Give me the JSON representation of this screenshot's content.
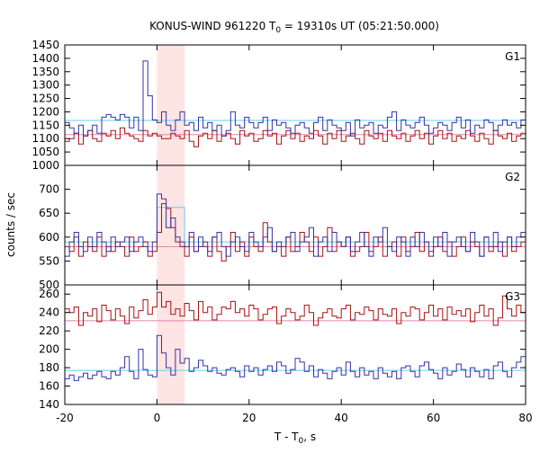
{
  "chart_data": {
    "type": "line",
    "title_prefix": "KONUS-WIND 961220 T",
    "title_sub": "0",
    "title_suffix": " = 19310s UT (05:21:50.000)",
    "xlabel_prefix": "T - T",
    "xlabel_sub": "0",
    "xlabel_suffix": ", s",
    "ylabel": "counts / sec",
    "xlim": [
      -20,
      80
    ],
    "xticks": [
      -20,
      0,
      20,
      40,
      60,
      80
    ],
    "highlight": {
      "x0": 0,
      "x1": 6,
      "color": "#ffe4e4"
    },
    "grid": false,
    "colors": {
      "blue": "#3333aa",
      "red": "#aa1111",
      "cyan": "#66ccee",
      "pink": "#dd88aa"
    },
    "panels": [
      {
        "label": "G1",
        "ylim": [
          1000,
          1450
        ],
        "yticks": [
          1000,
          1050,
          1100,
          1150,
          1200,
          1250,
          1300,
          1350,
          1400,
          1450
        ],
        "bin_start": -20,
        "bin_width": 1,
        "blue_values": [
          1160,
          1140,
          1120,
          1150,
          1110,
          1130,
          1150,
          1120,
          1180,
          1190,
          1180,
          1170,
          1190,
          1180,
          1140,
          1180,
          1130,
          1390,
          1260,
          1170,
          1160,
          1200,
          1150,
          1130,
          1170,
          1200,
          1150,
          1160,
          1130,
          1180,
          1140,
          1160,
          1130,
          1150,
          1110,
          1130,
          1200,
          1150,
          1140,
          1180,
          1160,
          1140,
          1160,
          1180,
          1130,
          1170,
          1150,
          1160,
          1140,
          1120,
          1150,
          1160,
          1140,
          1120,
          1160,
          1180,
          1130,
          1170,
          1150,
          1140,
          1130,
          1160,
          1110,
          1170,
          1140,
          1150,
          1160,
          1120,
          1150,
          1140,
          1180,
          1200,
          1130,
          1170,
          1150,
          1140,
          1160,
          1180,
          1150,
          1120,
          1140,
          1160,
          1150,
          1130,
          1160,
          1180,
          1140,
          1170,
          1120,
          1150,
          1140,
          1170,
          1160,
          1130,
          1150,
          1170,
          1150,
          1160,
          1140,
          1170
        ],
        "red_values": [
          1090,
          1100,
          1120,
          1080,
          1110,
          1130,
          1100,
          1090,
          1120,
          1110,
          1130,
          1100,
          1140,
          1120,
          1110,
          1100,
          1090,
          1130,
          1110,
          1120,
          1110,
          1100,
          1100,
          1120,
          1110,
          1100,
          1130,
          1090,
          1070,
          1110,
          1120,
          1100,
          1130,
          1090,
          1110,
          1120,
          1100,
          1080,
          1130,
          1110,
          1120,
          1090,
          1100,
          1130,
          1110,
          1120,
          1080,
          1110,
          1130,
          1100,
          1120,
          1090,
          1110,
          1100,
          1130,
          1110,
          1080,
          1120,
          1100,
          1130,
          1090,
          1110,
          1120,
          1100,
          1080,
          1130,
          1110,
          1100,
          1120,
          1090,
          1130,
          1110,
          1100,
          1120,
          1090,
          1110,
          1130,
          1100,
          1120,
          1080,
          1110,
          1130,
          1100,
          1120,
          1090,
          1110,
          1100,
          1130,
          1110,
          1090,
          1120,
          1100,
          1080,
          1130,
          1110,
          1100,
          1120,
          1090,
          1110,
          1120
        ],
        "blue_bg": 1168,
        "red_bg": 1115
      },
      {
        "label": "G2",
        "ylim": [
          500,
          750
        ],
        "yticks": [
          500,
          550,
          600,
          650,
          700
        ],
        "bin_start": -20,
        "bin_width": 1,
        "blue_values": [
          560,
          590,
          610,
          580,
          570,
          600,
          580,
          610,
          590,
          570,
          600,
          580,
          590,
          600,
          570,
          590,
          600,
          580,
          570,
          590,
          690,
          680,
          620,
          640,
          600,
          590,
          580,
          610,
          570,
          600,
          580,
          570,
          600,
          610,
          580,
          560,
          590,
          600,
          580,
          570,
          610,
          590,
          580,
          600,
          620,
          570,
          590,
          580,
          600,
          610,
          570,
          590,
          600,
          620,
          560,
          590,
          600,
          570,
          610,
          590,
          580,
          600,
          570,
          590,
          610,
          580,
          560,
          600,
          590,
          620,
          580,
          570,
          600,
          590,
          560,
          600,
          580,
          610,
          590,
          570,
          600,
          580,
          610,
          560,
          590,
          600,
          580,
          570,
          610,
          590,
          560,
          600,
          580,
          610,
          570,
          590,
          600,
          580,
          600,
          610
        ],
        "red_values": [
          580,
          570,
          600,
          560,
          590,
          580,
          570,
          600,
          560,
          580,
          570,
          590,
          580,
          560,
          600,
          570,
          580,
          590,
          560,
          570,
          610,
          670,
          660,
          620,
          590,
          580,
          560,
          600,
          570,
          580,
          590,
          560,
          600,
          570,
          550,
          580,
          610,
          570,
          590,
          560,
          600,
          580,
          570,
          630,
          590,
          570,
          580,
          560,
          600,
          570,
          580,
          610,
          590,
          570,
          600,
          560,
          580,
          620,
          570,
          590,
          580,
          600,
          560,
          570,
          580,
          610,
          570,
          580,
          600,
          560,
          580,
          590,
          560,
          600,
          570,
          580,
          610,
          570,
          590,
          560,
          580,
          600,
          570,
          590,
          560,
          580,
          600,
          570,
          590,
          580,
          560,
          600,
          570,
          580,
          590,
          560,
          600,
          570,
          580,
          590
        ],
        "step_cyan": [
          {
            "x0": -20,
            "x1": 0,
            "y": 590
          },
          {
            "x0": 0,
            "x1": 6,
            "y": 662
          },
          {
            "x0": 6,
            "x1": 80,
            "y": 590
          }
        ],
        "red_bg": 580
      },
      {
        "label": "G3",
        "ylim": [
          140,
          270
        ],
        "yticks": [
          140,
          160,
          180,
          200,
          220,
          240,
          260
        ],
        "bin_start": -20,
        "bin_width": 1,
        "blue_values": [
          168,
          172,
          166,
          170,
          174,
          168,
          172,
          176,
          170,
          168,
          176,
          172,
          180,
          192,
          176,
          168,
          200,
          178,
          172,
          170,
          215,
          196,
          180,
          172,
          200,
          185,
          190,
          176,
          180,
          188,
          182,
          176,
          180,
          174,
          172,
          178,
          180,
          176,
          170,
          182,
          176,
          180,
          172,
          178,
          182,
          176,
          186,
          182,
          174,
          178,
          190,
          186,
          176,
          182,
          170,
          178,
          174,
          168,
          176,
          180,
          172,
          186,
          176,
          170,
          180,
          172,
          176,
          168,
          180,
          174,
          170,
          176,
          168,
          180,
          182,
          176,
          170,
          182,
          186,
          178,
          174,
          168,
          180,
          172,
          176,
          184,
          178,
          170,
          180,
          176,
          170,
          178,
          168,
          182,
          186,
          176,
          170,
          180,
          186,
          192
        ],
        "red_values": [
          244,
          240,
          246,
          226,
          240,
          236,
          244,
          230,
          248,
          242,
          232,
          244,
          236,
          228,
          246,
          234,
          242,
          254,
          238,
          246,
          262,
          246,
          252,
          238,
          244,
          236,
          250,
          242,
          232,
          252,
          240,
          246,
          232,
          238,
          246,
          244,
          252,
          240,
          244,
          236,
          248,
          244,
          232,
          238,
          244,
          246,
          228,
          236,
          244,
          240,
          232,
          236,
          248,
          240,
          226,
          234,
          240,
          244,
          236,
          234,
          244,
          248,
          232,
          240,
          238,
          246,
          242,
          232,
          244,
          238,
          236,
          244,
          228,
          240,
          236,
          246,
          244,
          232,
          240,
          248,
          236,
          244,
          232,
          246,
          238,
          242,
          236,
          244,
          230,
          240,
          248,
          236,
          244,
          226,
          234,
          258,
          244,
          236,
          248,
          240
        ],
        "blue_bg": 177,
        "red_bg": 231
      }
    ]
  }
}
